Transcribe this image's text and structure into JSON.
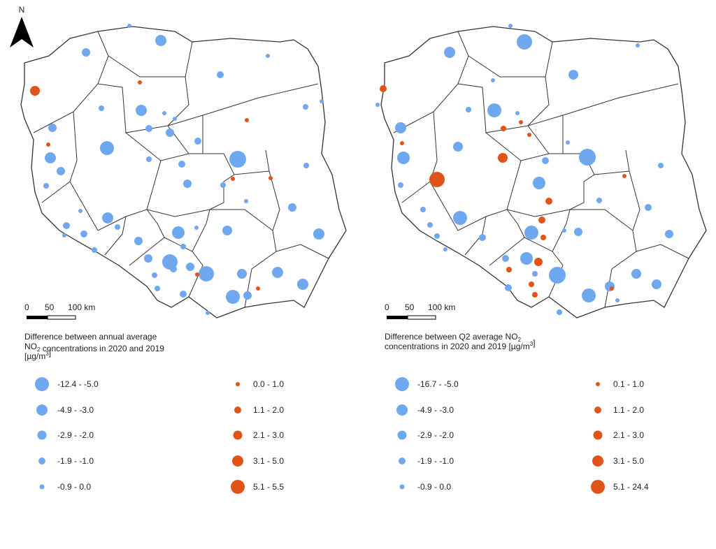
{
  "north_label": "N",
  "panels": [
    {
      "scale_labels": [
        "0",
        "50",
        "100 km"
      ],
      "title": [
        [
          "Difference between annual average"
        ],
        [
          "NO",
          {
            "sub": "2"
          },
          " concentrations in 2020 and 2019"
        ],
        [
          "[µg/m",
          {
            "sup": "3"
          },
          "]"
        ]
      ],
      "negative_color": "#6fa8ef",
      "positive_color": "#e2531a",
      "negative_classes": [
        "-12.4 - -5.0",
        "-4.9 - -3.0",
        "-2.9 - -2.0",
        "-1.9 - -1.0",
        "-0.9 - 0.0"
      ],
      "positive_classes": [
        "0.0 - 1.0",
        "1.1 - 2.0",
        "2.1 - 3.0",
        "3.1 - 5.0",
        "5.1 - 5.5"
      ]
    },
    {
      "scale_labels": [
        "0",
        "50",
        "100 km"
      ],
      "title": [
        [
          "Difference between Q2 average NO",
          {
            "sub": "2"
          }
        ],
        [
          "concentrations in 2020 and 2019 [µg/m",
          {
            "sup": "3"
          },
          "]"
        ]
      ],
      "negative_color": "#6fa8ef",
      "positive_color": "#e2531a",
      "negative_classes": [
        "-16.7 - -5.0",
        "-4.9 - -3.0",
        "-2.9 - -2.0",
        "-1.9 - -1.0",
        "-0.9 - 0.0"
      ],
      "positive_classes": [
        "0.1 - 1.0",
        "1.1 - 2.0",
        "2.1 - 3.0",
        "3.1 - 5.0",
        "5.1 - 24.4"
      ]
    }
  ]
}
